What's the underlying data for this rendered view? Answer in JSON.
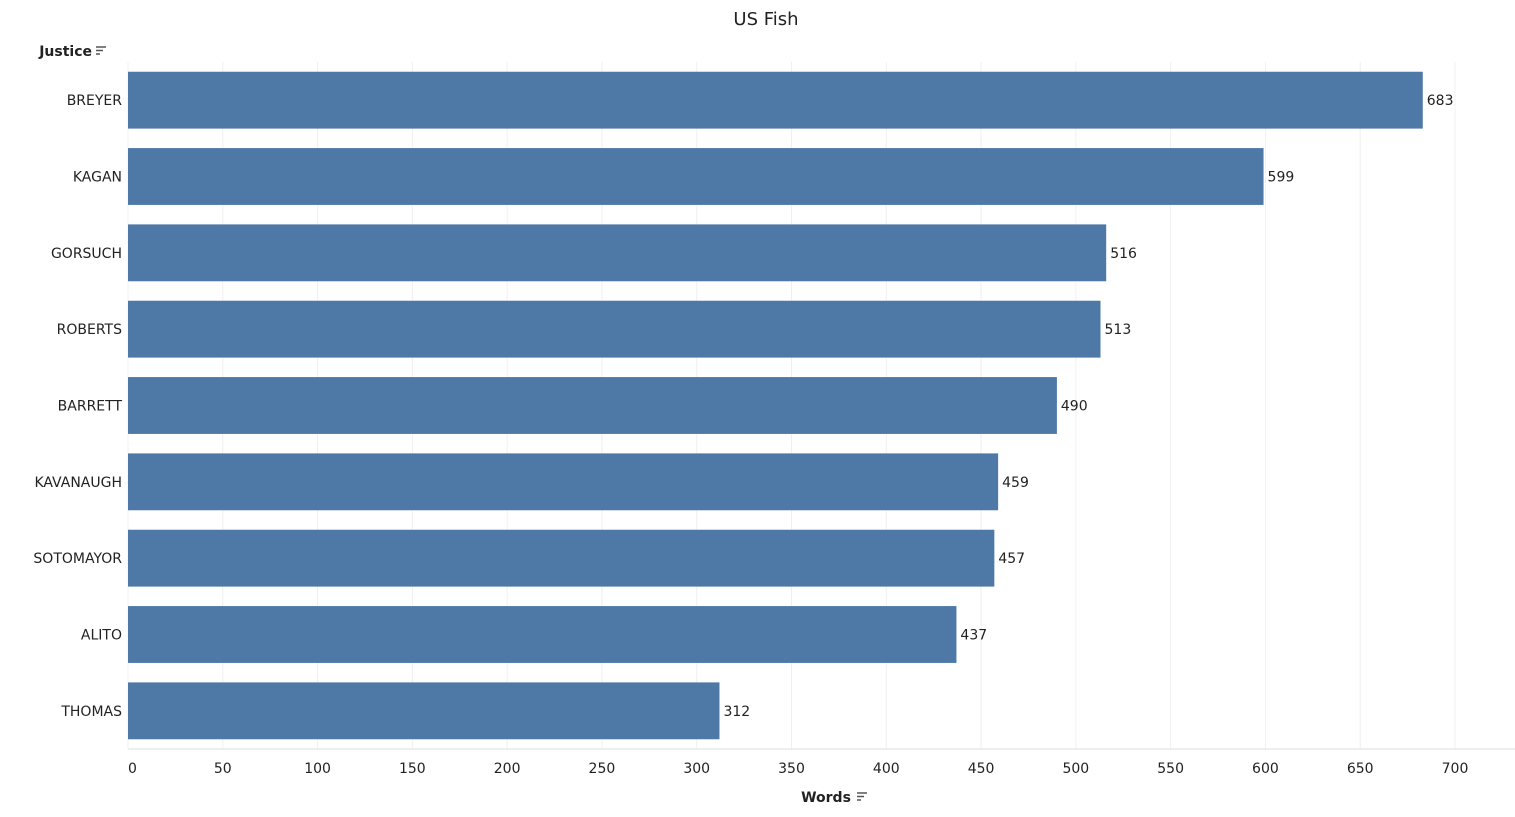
{
  "chart_data": {
    "type": "bar",
    "orientation": "horizontal",
    "title": "US Fish",
    "row_header": "Justice",
    "xlabel": "Words",
    "categories": [
      "BREYER",
      "KAGAN",
      "GORSUCH",
      "ROBERTS",
      "BARRETT",
      "KAVANAUGH",
      "SOTOMAYOR",
      "ALITO",
      "THOMAS"
    ],
    "values": [
      683,
      599,
      516,
      513,
      490,
      459,
      457,
      437,
      312
    ],
    "xlim": [
      0,
      735
    ],
    "xticks": [
      0,
      50,
      100,
      150,
      200,
      250,
      300,
      350,
      400,
      450,
      500,
      550,
      600,
      650,
      700
    ],
    "grid": "vertical",
    "legend": "none",
    "bar_color": "#4e79a7",
    "sort_icon": "sort-descending-icon"
  }
}
